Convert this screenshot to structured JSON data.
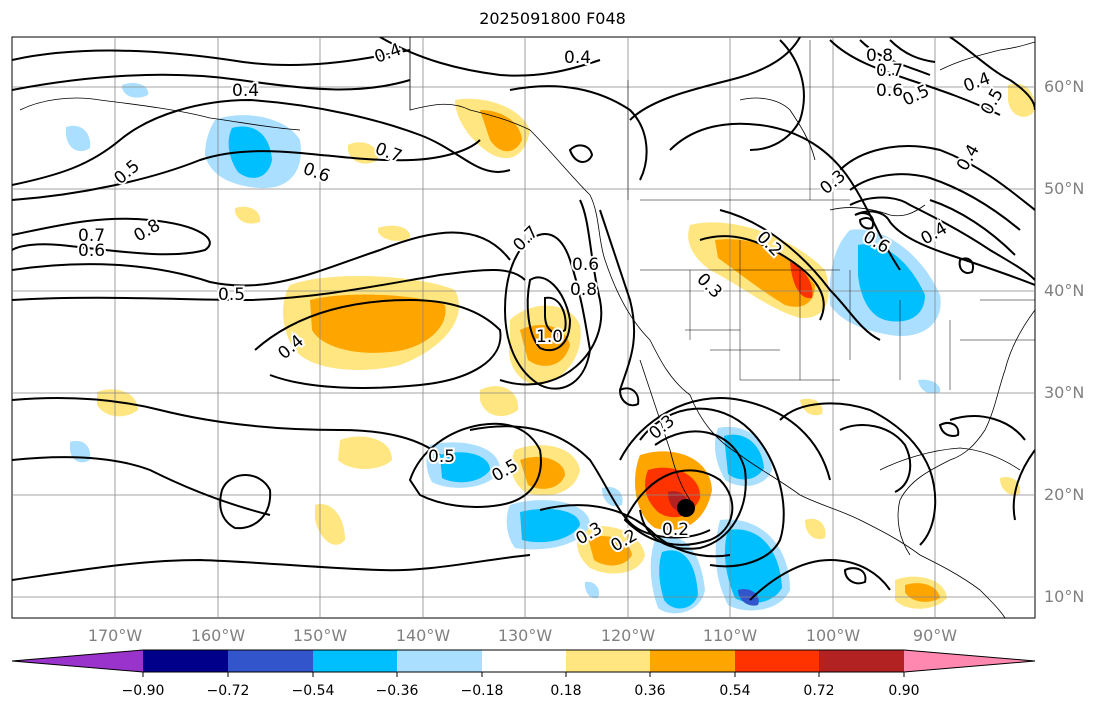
{
  "title": "2025091800 F048",
  "lat_labels": [
    "60°N",
    "50°N",
    "40°N",
    "30°N",
    "20°N",
    "10°N"
  ],
  "lon_labels": [
    "170°W",
    "160°W",
    "150°W",
    "140°W",
    "130°W",
    "120°W",
    "110°W",
    "100°W",
    "90°W"
  ],
  "contour_labels": [
    "0.4",
    "0.4",
    "0.4",
    "0.8",
    "0.7",
    "0.6",
    "0.5",
    "0.4",
    "0.5",
    "0.5",
    "0.6",
    "0.7",
    "0.7",
    "0.8",
    "0.6",
    "0.5",
    "0.4",
    "0.7",
    "0.6",
    "0.8",
    "1.0",
    "0.2",
    "0.3",
    "0.6",
    "0.4",
    "0.3",
    "0.4",
    "0.5",
    "0.5",
    "0.3",
    "0.2",
    "0.3",
    "0.2"
  ],
  "colorbar": {
    "tick_labels": [
      "−0.90",
      "−0.72",
      "−0.54",
      "−0.36",
      "−0.18",
      "0.18",
      "0.36",
      "0.54",
      "0.72",
      "0.90"
    ],
    "colors": [
      "#9933cc",
      "#00008b",
      "#3355cc",
      "#00bfff",
      "#aadfff",
      "#ffffff",
      "#ffe680",
      "#ffa500",
      "#ff3300",
      "#b22222",
      "#ff88b0"
    ]
  },
  "storm_marker": "filled-circle"
}
